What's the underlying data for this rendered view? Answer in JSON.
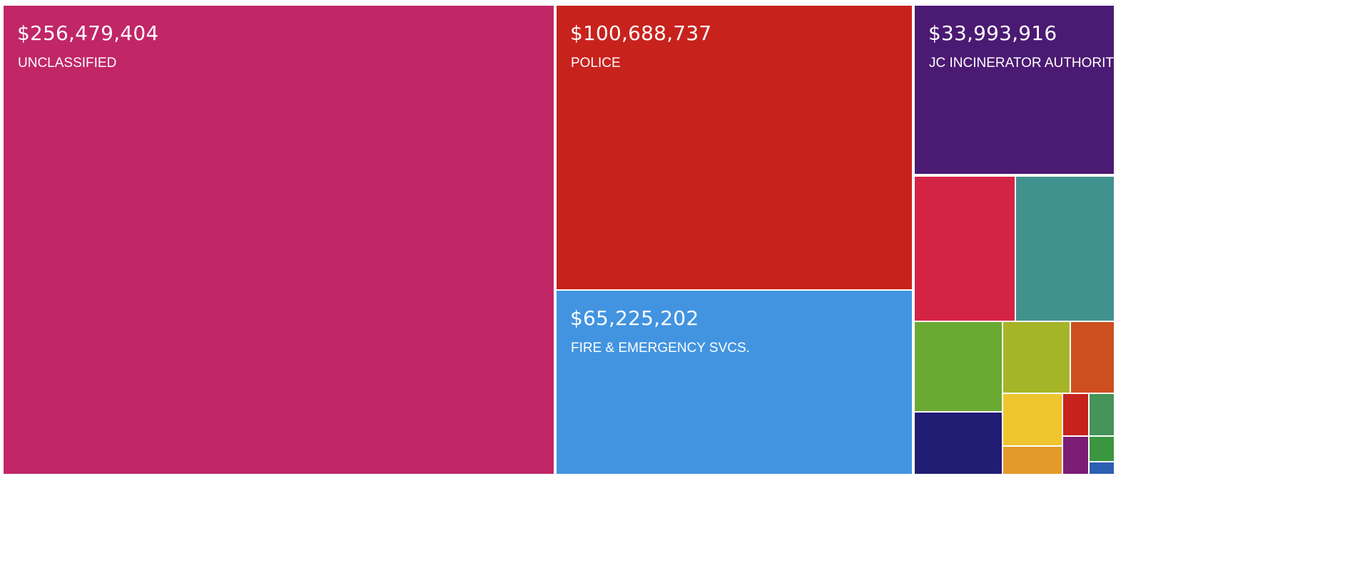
{
  "chart_data": {
    "type": "treemap",
    "tiles": [
      {
        "id": "unclassified",
        "label": "UNCLASSIFIED",
        "amount_text": "$256,479,404",
        "value": 256479404,
        "color": "#c12667"
      },
      {
        "id": "police",
        "label": "POLICE",
        "amount_text": "$100,688,737",
        "value": 100688737,
        "color": "#c8221d"
      },
      {
        "id": "fire-emergency",
        "label": "FIRE & EMERGENCY SVCS.",
        "amount_text": "$65,225,202",
        "value": 65225202,
        "color": "#4294e0"
      },
      {
        "id": "jc-incinerator",
        "label": "JC INCINERATOR AUTHORITY",
        "amount_text": "$33,993,916",
        "value": 33993916,
        "color": "#4b1a73"
      },
      {
        "id": "unlabeled-1",
        "color": "#d42445"
      },
      {
        "id": "unlabeled-2",
        "color": "#41928e"
      },
      {
        "id": "unlabeled-3",
        "color": "#6aaa33"
      },
      {
        "id": "unlabeled-4",
        "color": "#a6b528"
      },
      {
        "id": "unlabeled-5",
        "color": "#cd4f1f"
      },
      {
        "id": "unlabeled-6",
        "color": "#211c74"
      },
      {
        "id": "unlabeled-7",
        "color": "#efc52e"
      },
      {
        "id": "unlabeled-8",
        "color": "#c8221d"
      },
      {
        "id": "unlabeled-9",
        "color": "#459459"
      },
      {
        "id": "unlabeled-10",
        "color": "#e29a2b"
      },
      {
        "id": "unlabeled-11",
        "color": "#7b1e74"
      },
      {
        "id": "unlabeled-12",
        "color": "#3b973f"
      },
      {
        "id": "unlabeled-13",
        "color": "#2c5fb3"
      }
    ]
  }
}
